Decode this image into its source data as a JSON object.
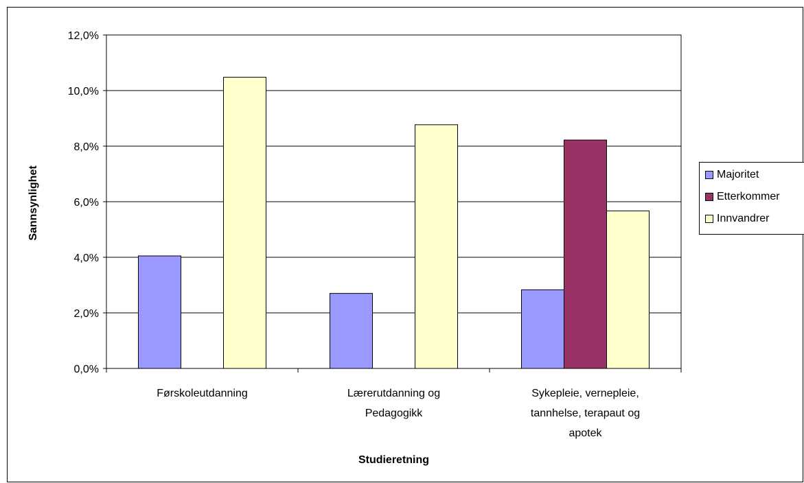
{
  "chart_data": {
    "type": "bar",
    "categories": [
      [
        "Førskoleutdanning"
      ],
      [
        "Lærerutdanning og",
        "Pedagogikk"
      ],
      [
        "Sykepleie, vernepleie,",
        "tannhelse, terapaut og",
        "apotek"
      ]
    ],
    "series": [
      {
        "name": "Majoritet",
        "color": "#9999FF",
        "values": [
          4.05,
          2.7,
          2.83
        ]
      },
      {
        "name": "Etterkommer",
        "color": "#993366",
        "values": [
          null,
          null,
          8.22
        ]
      },
      {
        "name": "Innvandrer",
        "color": "#FFFFCC",
        "values": [
          10.48,
          8.77,
          5.67
        ]
      }
    ],
    "ylim": [
      0,
      12
    ],
    "yticks": [
      "0,0%",
      "2,0%",
      "4,0%",
      "6,0%",
      "8,0%",
      "10,0%",
      "12,0%"
    ],
    "xlabel": "Studieretning",
    "ylabel": "Sannsynlighet",
    "grid": true,
    "legend": "right"
  }
}
